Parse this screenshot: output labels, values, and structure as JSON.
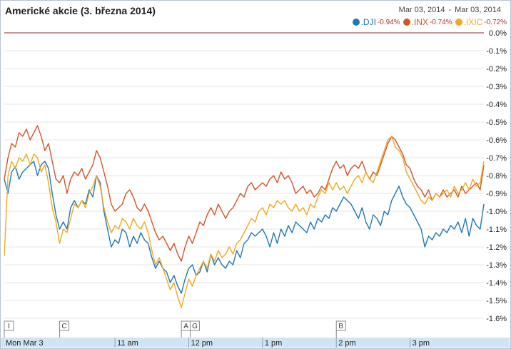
{
  "title": "Americké akcie (3. března 2014)",
  "range": {
    "start": "Mar 03, 2014",
    "separator": "-",
    "end": "Mar 03, 2014"
  },
  "legend": [
    {
      "name": ".DJI",
      "change": "-0.94%",
      "color": "#1f78b4"
    },
    {
      "name": ".INX",
      "change": "-0.74%",
      "color": "#d4542a"
    },
    {
      "name": ".IXIC",
      "change": "-0.72%",
      "color": "#f0a920"
    }
  ],
  "colors": {
    "axis_band": "#cfe5f3",
    "grid": "#e6e6e6",
    "zero_line": "#8b2b2b"
  },
  "chart_data": {
    "type": "line",
    "ylim": [
      -1.65,
      0.0
    ],
    "y_ticks": [
      0.0,
      -0.1,
      -0.2,
      -0.3,
      -0.4,
      -0.5,
      -0.6,
      -0.7,
      -0.8,
      -0.9,
      -1.0,
      -1.1,
      -1.2,
      -1.3,
      -1.4,
      -1.5,
      -1.6
    ],
    "y_tick_labels": [
      "0.0%",
      "-0.1%",
      "-0.2%",
      "-0.3%",
      "-0.4%",
      "-0.5%",
      "-0.6%",
      "-0.7%",
      "-0.8%",
      "-0.9%",
      "-1.0%",
      "-1.1%",
      "-1.2%",
      "-1.3%",
      "-1.4%",
      "-1.5%",
      "-1.6%"
    ],
    "x_unit": "hours",
    "xlim": [
      9.5,
      16.0
    ],
    "x_ticks": [
      {
        "label": "Mon Mar 3",
        "x": 9.5
      },
      {
        "label": "11 am",
        "x": 11.0
      },
      {
        "label": "12 pm",
        "x": 12.0
      },
      {
        "label": "1 pm",
        "x": 13.0
      },
      {
        "label": "2 pm",
        "x": 14.0
      },
      {
        "label": "3 pm",
        "x": 15.0
      }
    ],
    "flags": [
      {
        "label": "I",
        "x": 9.5
      },
      {
        "label": "C",
        "x": 10.25
      },
      {
        "label": "A",
        "x": 11.9
      },
      {
        "label": "G",
        "x": 12.0
      },
      {
        "label": "B",
        "x": 14.0
      }
    ],
    "series": [
      {
        "name": ".DJI",
        "color": "#1f78b4",
        "x": [
          9.5,
          9.55,
          9.6,
          9.65,
          9.7,
          9.75,
          9.8,
          9.85,
          9.9,
          9.95,
          10.0,
          10.05,
          10.1,
          10.15,
          10.2,
          10.25,
          10.3,
          10.35,
          10.4,
          10.45,
          10.5,
          10.55,
          10.6,
          10.65,
          10.7,
          10.75,
          10.8,
          10.85,
          10.9,
          10.95,
          11.0,
          11.05,
          11.1,
          11.15,
          11.2,
          11.25,
          11.3,
          11.35,
          11.4,
          11.45,
          11.5,
          11.55,
          11.6,
          11.65,
          11.7,
          11.75,
          11.8,
          11.85,
          11.9,
          11.95,
          12.0,
          12.05,
          12.1,
          12.15,
          12.2,
          12.25,
          12.3,
          12.35,
          12.4,
          12.45,
          12.5,
          12.55,
          12.6,
          12.65,
          12.7,
          12.75,
          12.8,
          12.85,
          12.9,
          12.95,
          13.0,
          13.05,
          13.1,
          13.15,
          13.2,
          13.25,
          13.3,
          13.35,
          13.4,
          13.45,
          13.5,
          13.55,
          13.6,
          13.65,
          13.7,
          13.75,
          13.8,
          13.85,
          13.9,
          13.95,
          14.0,
          14.05,
          14.1,
          14.15,
          14.2,
          14.25,
          14.3,
          14.35,
          14.4,
          14.45,
          14.5,
          14.55,
          14.6,
          14.65,
          14.7,
          14.75,
          14.8,
          14.85,
          14.9,
          14.95,
          15.0,
          15.05,
          15.1,
          15.15,
          15.2,
          15.25,
          15.3,
          15.35,
          15.4,
          15.45,
          15.5,
          15.55,
          15.6,
          15.65,
          15.7,
          15.75,
          15.8,
          15.85,
          15.9,
          15.95,
          16.0
        ],
        "values": [
          -0.82,
          -0.9,
          -0.78,
          -0.75,
          -0.82,
          -0.78,
          -0.76,
          -0.74,
          -0.72,
          -0.8,
          -0.74,
          -0.72,
          -0.76,
          -0.9,
          -1.02,
          -1.1,
          -1.06,
          -1.1,
          -0.98,
          -0.94,
          -0.98,
          -0.94,
          -0.96,
          -0.88,
          -0.92,
          -0.8,
          -0.84,
          -1.0,
          -1.1,
          -1.2,
          -1.16,
          -1.18,
          -1.1,
          -1.12,
          -1.2,
          -1.14,
          -1.18,
          -1.12,
          -1.16,
          -1.18,
          -1.26,
          -1.32,
          -1.28,
          -1.32,
          -1.34,
          -1.4,
          -1.36,
          -1.42,
          -1.46,
          -1.38,
          -1.32,
          -1.3,
          -1.36,
          -1.34,
          -1.28,
          -1.34,
          -1.24,
          -1.3,
          -1.26,
          -1.3,
          -1.32,
          -1.28,
          -1.3,
          -1.22,
          -1.26,
          -1.18,
          -1.16,
          -1.12,
          -1.14,
          -1.12,
          -1.1,
          -1.14,
          -1.2,
          -1.12,
          -1.18,
          -1.1,
          -1.14,
          -1.08,
          -1.12,
          -1.06,
          -1.08,
          -1.1,
          -1.12,
          -1.06,
          -1.1,
          -1.04,
          -1.06,
          -1.02,
          -1.04,
          -0.98,
          -1.0,
          -0.96,
          -0.92,
          -0.94,
          -0.96,
          -1.0,
          -1.04,
          -0.98,
          -1.06,
          -1.1,
          -1.02,
          -1.04,
          -1.08,
          -1.0,
          -1.02,
          -0.94,
          -0.9,
          -0.86,
          -0.92,
          -0.96,
          -0.98,
          -1.02,
          -1.06,
          -1.1,
          -1.2,
          -1.14,
          -1.16,
          -1.12,
          -1.14,
          -1.1,
          -1.12,
          -1.08,
          -1.1,
          -1.06,
          -1.12,
          -1.04,
          -1.14,
          -1.04,
          -1.08,
          -1.1,
          -0.96
        ],
        "end": -0.94
      },
      {
        "name": ".INX",
        "color": "#d4542a",
        "x": [
          9.5,
          9.55,
          9.6,
          9.65,
          9.7,
          9.75,
          9.8,
          9.85,
          9.9,
          9.95,
          10.0,
          10.05,
          10.1,
          10.15,
          10.2,
          10.25,
          10.3,
          10.35,
          10.4,
          10.45,
          10.5,
          10.55,
          10.6,
          10.65,
          10.7,
          10.75,
          10.8,
          10.85,
          10.9,
          10.95,
          11.0,
          11.05,
          11.1,
          11.15,
          11.2,
          11.25,
          11.3,
          11.35,
          11.4,
          11.45,
          11.5,
          11.55,
          11.6,
          11.65,
          11.7,
          11.75,
          11.8,
          11.85,
          11.9,
          11.95,
          12.0,
          12.05,
          12.1,
          12.15,
          12.2,
          12.25,
          12.3,
          12.35,
          12.4,
          12.45,
          12.5,
          12.55,
          12.6,
          12.65,
          12.7,
          12.75,
          12.8,
          12.85,
          12.9,
          12.95,
          13.0,
          13.05,
          13.1,
          13.15,
          13.2,
          13.25,
          13.3,
          13.35,
          13.4,
          13.45,
          13.5,
          13.55,
          13.6,
          13.65,
          13.7,
          13.75,
          13.8,
          13.85,
          13.9,
          13.95,
          14.0,
          14.05,
          14.1,
          14.15,
          14.2,
          14.25,
          14.3,
          14.35,
          14.4,
          14.45,
          14.5,
          14.55,
          14.6,
          14.65,
          14.7,
          14.75,
          14.8,
          14.85,
          14.9,
          14.95,
          15.0,
          15.05,
          15.1,
          15.15,
          15.2,
          15.25,
          15.3,
          15.35,
          15.4,
          15.45,
          15.5,
          15.55,
          15.6,
          15.65,
          15.7,
          15.75,
          15.8,
          15.85,
          15.9,
          15.95,
          16.0
        ],
        "values": [
          -0.82,
          -0.7,
          -0.62,
          -0.64,
          -0.56,
          -0.58,
          -0.54,
          -0.6,
          -0.56,
          -0.52,
          -0.58,
          -0.66,
          -0.62,
          -0.72,
          -0.82,
          -0.84,
          -0.8,
          -0.9,
          -0.82,
          -0.78,
          -0.8,
          -0.76,
          -0.82,
          -0.78,
          -0.74,
          -0.66,
          -0.7,
          -0.78,
          -0.86,
          -0.96,
          -1.0,
          -0.98,
          -0.96,
          -0.9,
          -0.88,
          -0.92,
          -0.98,
          -1.0,
          -0.96,
          -1.0,
          -1.06,
          -1.12,
          -1.16,
          -1.14,
          -1.18,
          -1.22,
          -1.18,
          -1.24,
          -1.28,
          -1.2,
          -1.14,
          -1.18,
          -1.12,
          -1.06,
          -1.08,
          -1.02,
          -0.98,
          -1.02,
          -0.96,
          -1.0,
          -1.04,
          -1.0,
          -0.98,
          -0.94,
          -0.9,
          -0.92,
          -0.86,
          -0.84,
          -0.88,
          -0.86,
          -0.84,
          -0.86,
          -0.82,
          -0.8,
          -0.84,
          -0.78,
          -0.82,
          -0.8,
          -0.84,
          -0.9,
          -0.88,
          -0.86,
          -0.9,
          -0.88,
          -0.92,
          -0.9,
          -0.86,
          -0.88,
          -0.82,
          -0.76,
          -0.72,
          -0.76,
          -0.74,
          -0.8,
          -0.76,
          -0.74,
          -0.76,
          -0.72,
          -0.78,
          -0.82,
          -0.78,
          -0.8,
          -0.74,
          -0.68,
          -0.62,
          -0.58,
          -0.6,
          -0.64,
          -0.68,
          -0.74,
          -0.76,
          -0.82,
          -0.86,
          -0.88,
          -0.92,
          -0.88,
          -0.94,
          -0.9,
          -0.92,
          -0.88,
          -0.92,
          -0.9,
          -0.88,
          -0.92,
          -0.86,
          -0.9,
          -0.88,
          -0.86,
          -0.84,
          -0.88,
          -0.74
        ],
        "end": -0.74
      },
      {
        "name": ".IXIC",
        "color": "#f0a920",
        "x": [
          9.5,
          9.55,
          9.6,
          9.65,
          9.7,
          9.75,
          9.8,
          9.85,
          9.9,
          9.95,
          10.0,
          10.05,
          10.1,
          10.15,
          10.2,
          10.25,
          10.3,
          10.35,
          10.4,
          10.45,
          10.5,
          10.55,
          10.6,
          10.65,
          10.7,
          10.75,
          10.8,
          10.85,
          10.9,
          10.95,
          11.0,
          11.05,
          11.1,
          11.15,
          11.2,
          11.25,
          11.3,
          11.35,
          11.4,
          11.45,
          11.5,
          11.55,
          11.6,
          11.65,
          11.7,
          11.75,
          11.8,
          11.85,
          11.9,
          11.95,
          12.0,
          12.05,
          12.1,
          12.15,
          12.2,
          12.25,
          12.3,
          12.35,
          12.4,
          12.45,
          12.5,
          12.55,
          12.6,
          12.65,
          12.7,
          12.75,
          12.8,
          12.85,
          12.9,
          12.95,
          13.0,
          13.05,
          13.1,
          13.15,
          13.2,
          13.25,
          13.3,
          13.35,
          13.4,
          13.45,
          13.5,
          13.55,
          13.6,
          13.65,
          13.7,
          13.75,
          13.8,
          13.85,
          13.9,
          13.95,
          14.0,
          14.05,
          14.1,
          14.15,
          14.2,
          14.25,
          14.3,
          14.35,
          14.4,
          14.45,
          14.5,
          14.55,
          14.6,
          14.65,
          14.7,
          14.75,
          14.8,
          14.85,
          14.9,
          14.95,
          15.0,
          15.05,
          15.1,
          15.15,
          15.2,
          15.25,
          15.3,
          15.35,
          15.4,
          15.45,
          15.5,
          15.55,
          15.6,
          15.65,
          15.7,
          15.75,
          15.8,
          15.85,
          15.9,
          15.95,
          16.0
        ],
        "values": [
          -1.25,
          -0.8,
          -0.72,
          -0.76,
          -0.7,
          -0.72,
          -0.68,
          -0.74,
          -0.68,
          -0.7,
          -0.78,
          -0.74,
          -0.84,
          -0.98,
          -1.06,
          -1.18,
          -1.1,
          -1.12,
          -1.04,
          -0.96,
          -0.98,
          -0.94,
          -0.98,
          -0.9,
          -0.86,
          -0.8,
          -0.86,
          -0.98,
          -1.06,
          -1.12,
          -1.08,
          -1.1,
          -1.04,
          -1.06,
          -1.1,
          -1.04,
          -1.08,
          -1.1,
          -1.06,
          -1.12,
          -1.22,
          -1.3,
          -1.26,
          -1.32,
          -1.38,
          -1.44,
          -1.4,
          -1.48,
          -1.54,
          -1.46,
          -1.38,
          -1.42,
          -1.36,
          -1.32,
          -1.28,
          -1.32,
          -1.24,
          -1.28,
          -1.22,
          -1.26,
          -1.24,
          -1.2,
          -1.24,
          -1.18,
          -1.16,
          -1.12,
          -1.08,
          -1.04,
          -1.06,
          -1.0,
          -0.98,
          -1.02,
          -0.96,
          -0.98,
          -0.94,
          -0.96,
          -0.94,
          -0.98,
          -1.0,
          -0.96,
          -1.0,
          -0.98,
          -1.02,
          -0.96,
          -0.98,
          -0.92,
          -0.88,
          -0.9,
          -0.84,
          -0.88,
          -0.84,
          -0.88,
          -0.86,
          -0.9,
          -0.86,
          -0.82,
          -0.8,
          -0.84,
          -0.78,
          -0.82,
          -0.84,
          -0.78,
          -0.72,
          -0.66,
          -0.6,
          -0.58,
          -0.64,
          -0.66,
          -0.7,
          -0.78,
          -0.82,
          -0.86,
          -0.9,
          -0.94,
          -0.96,
          -0.92,
          -0.94,
          -0.9,
          -0.92,
          -0.9,
          -0.88,
          -0.92,
          -0.86,
          -0.9,
          -0.88,
          -0.84,
          -0.88,
          -0.82,
          -0.86,
          -0.84,
          -0.72
        ],
        "end": -0.72
      }
    ]
  }
}
